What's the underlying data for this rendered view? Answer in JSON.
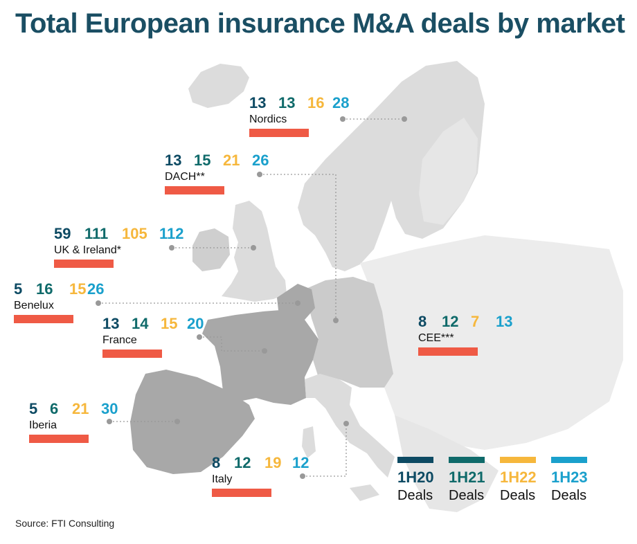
{
  "title": "Total European insurance M&A deals by market",
  "source": "Source: FTI Consulting",
  "colors": {
    "p1H20": "#0d4a63",
    "p1H21": "#0f6a6a",
    "p1H22": "#f6b73c",
    "p1H23": "#1aa0cc",
    "bar": "#ef5a45",
    "land_light": "#dcdcdc",
    "land_mid": "#bfbfbf",
    "land_dark": "#a8a8a8"
  },
  "legend": [
    {
      "period": "1H20",
      "label": "Deals"
    },
    {
      "period": "1H21",
      "label": "Deals"
    },
    {
      "period": "1H22",
      "label": "Deals"
    },
    {
      "period": "1H23",
      "label": "Deals"
    }
  ],
  "regions": {
    "nordics": {
      "name": "Nordics",
      "values": [
        "13",
        "13",
        "16",
        "28"
      ]
    },
    "dach": {
      "name": "DACH**",
      "values": [
        "13",
        "15",
        "21",
        "26"
      ]
    },
    "uk": {
      "name": "UK & Ireland*",
      "values": [
        "59",
        "111",
        "105",
        "112"
      ]
    },
    "benelux": {
      "name": "Benelux",
      "values": [
        "5",
        "16",
        "15",
        "26"
      ]
    },
    "france": {
      "name": "France",
      "values": [
        "13",
        "14",
        "15",
        "20"
      ]
    },
    "cee": {
      "name": "CEE***",
      "values": [
        "8",
        "12",
        "7",
        "13"
      ]
    },
    "iberia": {
      "name": "Iberia",
      "values": [
        "5",
        "6",
        "21",
        "30"
      ]
    },
    "italy": {
      "name": "Italy",
      "values": [
        "8",
        "12",
        "19",
        "12"
      ]
    }
  }
}
